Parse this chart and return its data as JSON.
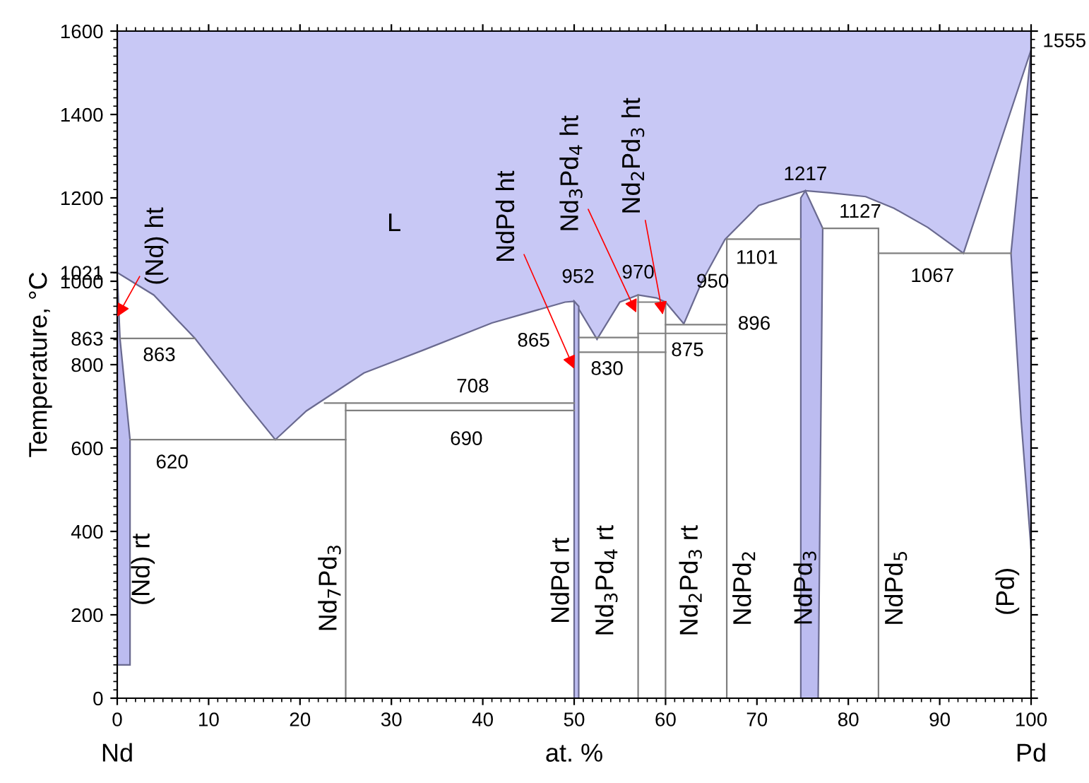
{
  "chart_data": {
    "type": "line",
    "xlabel": "at. %",
    "ylabel": "Temperature, °C",
    "xlim": [
      0,
      100
    ],
    "ylim": [
      0,
      1600
    ],
    "xticks": [
      0,
      10,
      20,
      30,
      40,
      50,
      60,
      70,
      80,
      90,
      100
    ],
    "yticks": [
      0,
      200,
      400,
      600,
      800,
      863,
      1000,
      1021,
      1200,
      1400,
      1600
    ],
    "grid": false,
    "legend": false,
    "series": [
      {
        "type": "area",
        "color": "#c8c8f5",
        "x": [
          0,
          4,
          8.5,
          13.9,
          17.3,
          20.7,
          27,
          33.5,
          41,
          49,
          50,
          52.5,
          55,
          57,
          59,
          60,
          62,
          64,
          66.5,
          70.2,
          75.3,
          78,
          81.9,
          85,
          88.7,
          92.6,
          100,
          100,
          0,
          0
        ],
        "values": [
          1021,
          967,
          863,
          712,
          620,
          689,
          780,
          835,
          900,
          950,
          952,
          861,
          950,
          967,
          960,
          950,
          898,
          1000,
          1100,
          1182,
          1217,
          1212,
          1203,
          1175,
          1129,
          1067,
          1555,
          1600,
          1600,
          1021
        ]
      },
      {
        "type": "area",
        "color": "#bcbcf0",
        "x": [
          0,
          0.3,
          1.4,
          1.4,
          0,
          0
        ],
        "values": [
          1021,
          863,
          620,
          80,
          80,
          1021
        ]
      },
      {
        "type": "area",
        "color": "#bcbcf0",
        "x": [
          50,
          50.5,
          50.5,
          50,
          50
        ],
        "values": [
          952,
          940,
          0,
          0,
          952
        ]
      },
      {
        "type": "area",
        "color": "#bcbcf0",
        "x": [
          74.8,
          75.3,
          77.2,
          76.7,
          74.8,
          74.8
        ],
        "values": [
          1200,
          1217,
          1127,
          0,
          0,
          1200
        ]
      },
      {
        "type": "area",
        "color": "#bcbcf0",
        "x": [
          97.8,
          100,
          100,
          98.9,
          97.8
        ],
        "values": [
          1067,
          1555,
          357,
          670,
          1067
        ]
      },
      {
        "color": "#808080",
        "x": [
          0.3,
          8.5
        ],
        "values": [
          863,
          863
        ]
      },
      {
        "color": "#808080",
        "x": [
          1.4,
          25
        ],
        "values": [
          620,
          620
        ]
      },
      {
        "color": "#808080",
        "x": [
          22.7,
          50
        ],
        "values": [
          708,
          708
        ]
      },
      {
        "color": "#808080",
        "x": [
          25,
          50
        ],
        "values": [
          690,
          690
        ]
      },
      {
        "color": "#808080",
        "x": [
          25,
          25
        ],
        "values": [
          0,
          708
        ]
      },
      {
        "color": "#808080",
        "x": [
          50.5,
          57
        ],
        "values": [
          865,
          865
        ]
      },
      {
        "color": "#808080",
        "x": [
          50.5,
          60
        ],
        "values": [
          830,
          830
        ]
      },
      {
        "color": "#808080",
        "x": [
          57,
          60
        ],
        "values": [
          950,
          950
        ]
      },
      {
        "color": "#808080",
        "x": [
          57,
          66.7
        ],
        "values": [
          875,
          875
        ]
      },
      {
        "color": "#808080",
        "x": [
          60,
          66.7
        ],
        "values": [
          896,
          896
        ]
      },
      {
        "color": "#808080",
        "x": [
          57,
          57
        ],
        "values": [
          0,
          967
        ]
      },
      {
        "color": "#808080",
        "x": [
          60,
          60
        ],
        "values": [
          0,
          950
        ]
      },
      {
        "color": "#808080",
        "x": [
          66.7,
          66.7
        ],
        "values": [
          0,
          1101
        ]
      },
      {
        "color": "#808080",
        "x": [
          66.7,
          74.8
        ],
        "values": [
          1101,
          1101
        ]
      },
      {
        "color": "#808080",
        "x": [
          77.2,
          83.3
        ],
        "values": [
          1127,
          1127
        ]
      },
      {
        "color": "#808080",
        "x": [
          83.3,
          83.3
        ],
        "values": [
          0,
          1127
        ]
      },
      {
        "color": "#808080",
        "x": [
          83.3,
          97.8
        ],
        "values": [
          1067,
          1067
        ]
      }
    ],
    "annotations": [
      "L",
      {
        "text": "863",
        "x": 4.6,
        "y": 863
      },
      {
        "text": "620",
        "x": 6.0,
        "y": 620
      },
      {
        "text": "708",
        "x": 38.9,
        "y": 708
      },
      {
        "text": "690",
        "x": 38.2,
        "y": 690
      },
      {
        "text": "952",
        "x": 50,
        "y": 952
      },
      {
        "text": "865",
        "x": 50.5,
        "y": 865
      },
      {
        "text": "830",
        "x": 53.6,
        "y": 830
      },
      {
        "text": "970",
        "x": 57,
        "y": 967
      },
      {
        "text": "950",
        "x": 60,
        "y": 950
      },
      {
        "text": "896",
        "x": 66.7,
        "y": 896
      },
      {
        "text": "875",
        "x": 62.4,
        "y": 875
      },
      {
        "text": "1217",
        "x": 75.3,
        "y": 1217
      },
      {
        "text": "1101",
        "x": 70.0,
        "y": 1101
      },
      {
        "text": "1127",
        "x": 81.3,
        "y": 1127
      },
      {
        "text": "1067",
        "x": 89.2,
        "y": 1067
      },
      {
        "text": "1555",
        "x": 100,
        "y": 1555
      },
      {
        "text": "(Nd) ht",
        "x": 0,
        "y": 915
      },
      {
        "text": "NdPd ht",
        "x": 50,
        "y": 790
      },
      {
        "text": "Nd$_{3}$Pd$_{4}$ ht",
        "x": 56.8,
        "y": 925
      },
      {
        "text": "Nd$_{2}$Pd$_{3}$ ht",
        "x": 59.7,
        "y": 920
      },
      "(Nd) rt",
      {
        "text": "Nd$_{7}$Pd$_{3}$",
        "x": 25,
        "y": 265
      },
      "NdPd rt",
      {
        "text": "Nd$_{3}$Pd$_{4}$ rt",
        "x": 57,
        "y": 282
      },
      {
        "text": "Nd$_{2}$Pd$_{3}$ rt",
        "x": 60,
        "y": 282
      },
      {
        "text": "NdPd$_{2}$",
        "x": 66.7,
        "y": 265
      },
      "NdPd$_{3}$",
      {
        "text": "NdPd$_{5}$",
        "x": 83.3,
        "y": 265
      },
      "(Pd)",
      "Nd",
      "Pd"
    ]
  }
}
